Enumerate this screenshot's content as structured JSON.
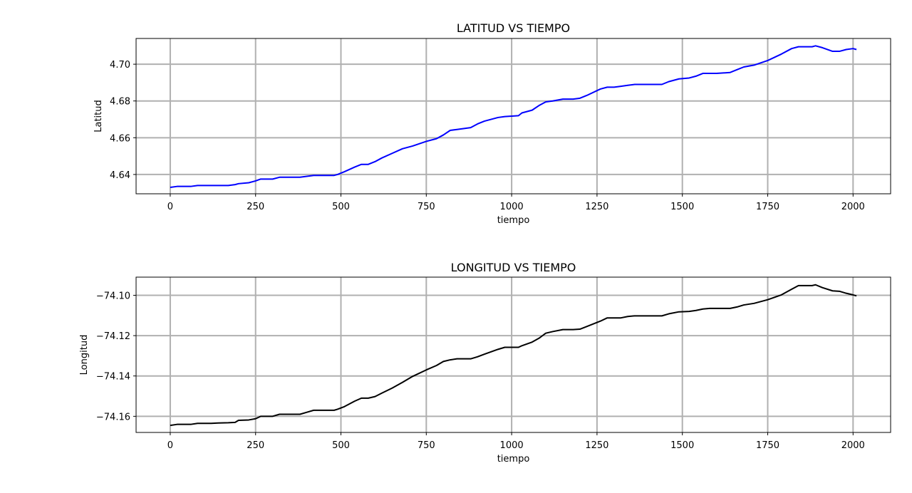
{
  "chart_data": [
    {
      "type": "line",
      "title": "LATITUD VS TIEMPO",
      "xlabel": "tiempo",
      "ylabel": "Latitud",
      "xlim": [
        -100,
        2110
      ],
      "ylim": [
        4.6295,
        4.714
      ],
      "xticks": [
        0,
        250,
        500,
        750,
        1000,
        1250,
        1500,
        1750,
        2000
      ],
      "xtick_labels": [
        "0",
        "250",
        "500",
        "750",
        "1000",
        "1250",
        "1500",
        "1750",
        "2000"
      ],
      "yticks": [
        4.64,
        4.66,
        4.68,
        4.7
      ],
      "ytick_labels": [
        "4.64",
        "4.66",
        "4.68",
        "4.70"
      ],
      "grid": true,
      "color": "#0000ff",
      "series": [
        {
          "x": [
            0,
            20,
            60,
            80,
            100,
            120,
            140,
            170,
            190,
            200,
            230,
            250,
            265,
            280,
            300,
            320,
            350,
            380,
            400,
            420,
            450,
            480,
            490,
            510,
            540,
            560,
            580,
            600,
            620,
            650,
            680,
            710,
            750,
            780,
            800,
            820,
            840,
            880,
            900,
            920,
            960,
            980,
            1020,
            1030,
            1060,
            1080,
            1100,
            1120,
            1150,
            1180,
            1200,
            1220,
            1260,
            1280,
            1300,
            1320,
            1340,
            1360,
            1400,
            1440,
            1460,
            1490,
            1520,
            1540,
            1560,
            1580,
            1600,
            1640,
            1660,
            1680,
            1710,
            1750,
            1790,
            1820,
            1840,
            1880,
            1890,
            1910,
            1940,
            1960,
            1980,
            2000,
            2010
          ],
          "y": [
            4.633,
            4.6335,
            4.6335,
            4.634,
            4.634,
            4.634,
            4.634,
            4.634,
            4.6345,
            4.635,
            4.6355,
            4.6365,
            4.6375,
            4.6375,
            4.6375,
            4.6385,
            4.6385,
            4.6385,
            4.639,
            4.6395,
            4.6395,
            4.6395,
            4.64,
            4.6415,
            4.644,
            4.6455,
            4.6455,
            4.647,
            4.649,
            4.6515,
            4.654,
            4.6555,
            4.658,
            4.6595,
            4.6615,
            4.664,
            4.6645,
            4.6655,
            4.6675,
            4.669,
            4.671,
            4.6715,
            4.672,
            4.6735,
            4.675,
            4.6775,
            4.6795,
            4.68,
            4.681,
            4.681,
            4.6815,
            4.683,
            4.6865,
            4.6875,
            4.6875,
            4.688,
            4.6885,
            4.689,
            4.689,
            4.689,
            4.6905,
            4.692,
            4.6925,
            4.6935,
            4.695,
            4.695,
            4.695,
            4.6955,
            4.697,
            4.6985,
            4.6995,
            4.702,
            4.7055,
            4.7085,
            4.7095,
            4.7095,
            4.71,
            4.709,
            4.707,
            4.707,
            4.708,
            4.7085,
            4.708
          ]
        }
      ]
    },
    {
      "type": "line",
      "title": "LONGITUD VS TIEMPO",
      "xlabel": "tiempo",
      "ylabel": "Longitud",
      "xlim": [
        -100,
        2110
      ],
      "ylim": [
        -74.168,
        -74.091
      ],
      "xticks": [
        0,
        250,
        500,
        750,
        1000,
        1250,
        1500,
        1750,
        2000
      ],
      "xtick_labels": [
        "0",
        "250",
        "500",
        "750",
        "1000",
        "1250",
        "1500",
        "1750",
        "2000"
      ],
      "yticks": [
        -74.16,
        -74.14,
        -74.12,
        -74.1
      ],
      "ytick_labels": [
        "−74.16",
        "−74.14",
        "−74.12",
        "−74.10"
      ],
      "grid": true,
      "color": "#000000",
      "series": [
        {
          "x": [
            0,
            20,
            60,
            80,
            100,
            120,
            140,
            170,
            190,
            200,
            230,
            250,
            265,
            280,
            300,
            320,
            350,
            380,
            400,
            420,
            450,
            480,
            490,
            510,
            540,
            560,
            580,
            600,
            620,
            650,
            680,
            710,
            750,
            780,
            800,
            820,
            840,
            880,
            900,
            920,
            960,
            980,
            1020,
            1030,
            1060,
            1080,
            1100,
            1120,
            1150,
            1180,
            1200,
            1220,
            1260,
            1280,
            1300,
            1320,
            1340,
            1360,
            1400,
            1440,
            1460,
            1490,
            1520,
            1540,
            1560,
            1580,
            1600,
            1640,
            1660,
            1680,
            1710,
            1750,
            1790,
            1820,
            1840,
            1880,
            1890,
            1910,
            1940,
            1960,
            1980,
            2000,
            2010
          ],
          "y": [
            -74.1645,
            -74.164,
            -74.164,
            -74.1635,
            -74.1635,
            -74.1635,
            -74.1633,
            -74.1632,
            -74.163,
            -74.162,
            -74.1618,
            -74.1612,
            -74.16,
            -74.16,
            -74.16,
            -74.159,
            -74.159,
            -74.159,
            -74.158,
            -74.157,
            -74.157,
            -74.157,
            -74.1565,
            -74.1552,
            -74.1525,
            -74.151,
            -74.151,
            -74.1502,
            -74.1485,
            -74.146,
            -74.1432,
            -74.1402,
            -74.137,
            -74.1348,
            -74.1328,
            -74.132,
            -74.1315,
            -74.1315,
            -74.1305,
            -74.1292,
            -74.1268,
            -74.1258,
            -74.1258,
            -74.125,
            -74.1232,
            -74.1213,
            -74.1188,
            -74.118,
            -74.117,
            -74.117,
            -74.1168,
            -74.1155,
            -74.1128,
            -74.1112,
            -74.1112,
            -74.1112,
            -74.1105,
            -74.1102,
            -74.1102,
            -74.1102,
            -74.1092,
            -74.1082,
            -74.108,
            -74.1075,
            -74.1068,
            -74.1065,
            -74.1065,
            -74.1065,
            -74.1058,
            -74.1048,
            -74.104,
            -74.1022,
            -74.0998,
            -74.097,
            -74.0952,
            -74.0952,
            -74.0948,
            -74.0962,
            -74.0978,
            -74.098,
            -74.099,
            -74.0998,
            -74.1003
          ]
        }
      ]
    }
  ]
}
